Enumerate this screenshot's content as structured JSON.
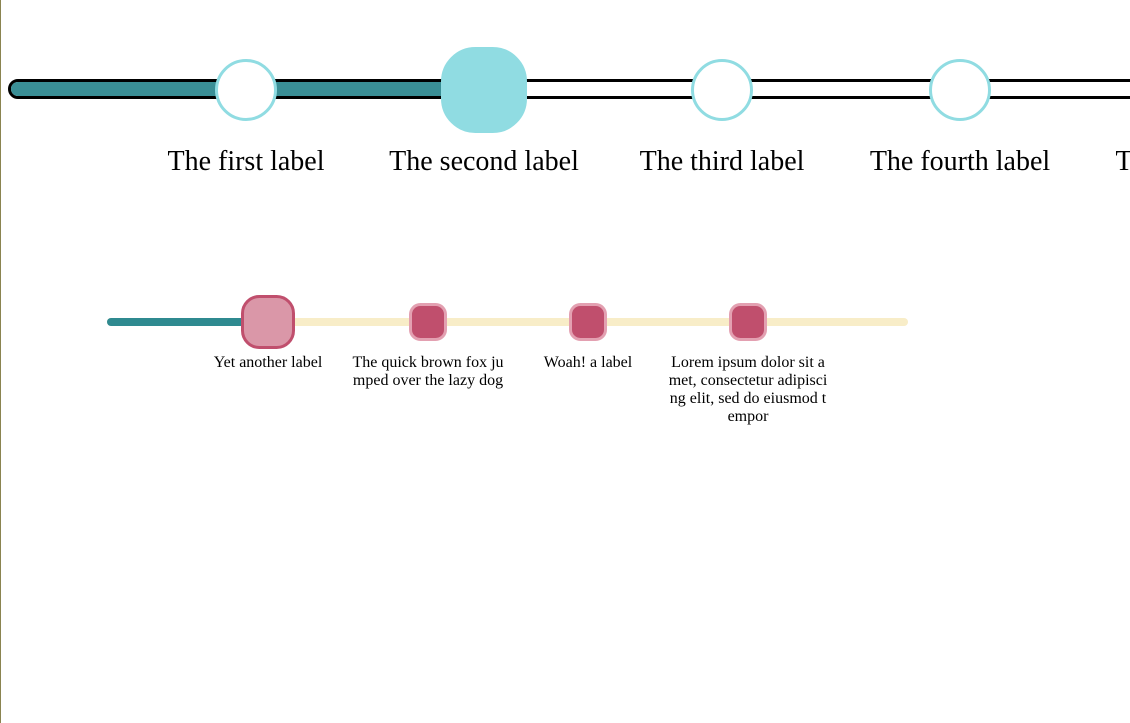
{
  "stepper_primary": {
    "progress_pct": 42,
    "active_index": 1,
    "colors": {
      "track_border": "#000000",
      "fill": "#3a8f96",
      "node_border": "#90dce2",
      "node_active_fill": "#90dce2"
    },
    "steps": [
      {
        "label": "The first label"
      },
      {
        "label": "The second label"
      },
      {
        "label": "The third label"
      },
      {
        "label": "The fourth label"
      },
      {
        "label": "T"
      }
    ]
  },
  "stepper_secondary": {
    "progress_pct": 20,
    "active_index": 0,
    "colors": {
      "track": "#f8edc8",
      "fill": "#2f8a90",
      "node_fill": "#c04f6d",
      "node_border": "#e3a0b1",
      "node_active_fill": "#da97a8"
    },
    "steps": [
      {
        "label": "Yet another label"
      },
      {
        "label": "The quick brown fox jumped over the lazy dog"
      },
      {
        "label": "Woah! a label"
      },
      {
        "label": "Lorem ipsum dolor sit amet, consectetur adipiscing elit, sed do eiusmod tempor"
      }
    ]
  }
}
